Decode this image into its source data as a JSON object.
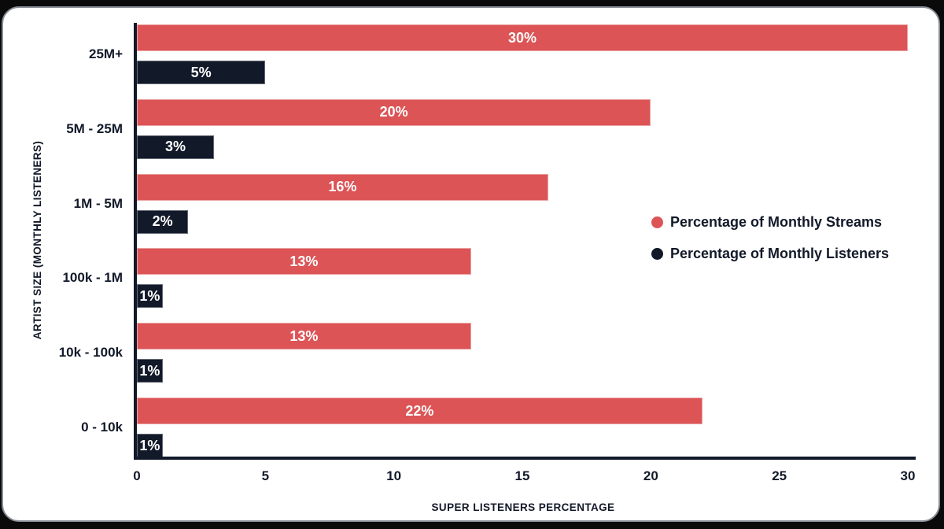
{
  "page": {
    "background_color": "#0a0a0a",
    "card_background": "#ffffff",
    "card_border_color": "#878d95"
  },
  "chart_data": {
    "type": "bar",
    "orientation": "horizontal",
    "xlabel": "SUPER LISTENERS PERCENTAGE",
    "ylabel": "ARTIST SIZE (MONTHLY LISTENERS)",
    "categories": [
      "25M+",
      "5M - 25M",
      "1M - 5M",
      "100k - 1M",
      "10k - 100k",
      "0 - 10k"
    ],
    "series": [
      {
        "name": "Percentage of Monthly Streams",
        "color": "#DC5456",
        "values": [
          30,
          20,
          16,
          13,
          13,
          22
        ],
        "data_labels": [
          "30%",
          "20%",
          "16%",
          "13%",
          "13%",
          "22%"
        ]
      },
      {
        "name": "Percentage of Monthly Listeners",
        "color": "#121929",
        "values": [
          5,
          3,
          2,
          1,
          1,
          1
        ],
        "data_labels": [
          "5%",
          "3%",
          "2%",
          "1%",
          "1%",
          "1%"
        ]
      }
    ],
    "x_ticks": [
      "0",
      "5",
      "10",
      "15",
      "20",
      "25",
      "30"
    ],
    "x_tick_values": [
      0,
      5,
      10,
      15,
      20,
      25,
      30
    ],
    "xlim": [
      0,
      30
    ],
    "grid": false,
    "legend_position": "center-right",
    "data_label_color": "#ffffff",
    "axis_color": "#121929"
  }
}
